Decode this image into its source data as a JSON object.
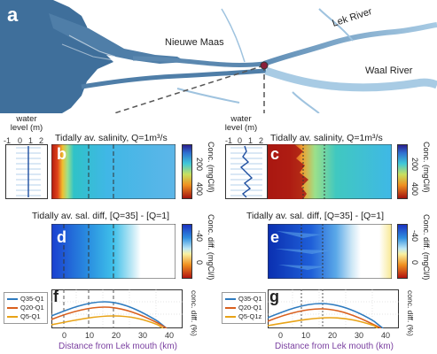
{
  "panel_a": {
    "letter": "a",
    "labels": {
      "nieuwe_maas": "Nieuwe Maas",
      "lek_river": "Lek River",
      "waal_river": "Waal River"
    }
  },
  "panel_b": {
    "letter": "b",
    "title": "Tidally av. salinity, Q=1m³/s",
    "water_level_title": "water\nlevel (m)",
    "water_level_ticks": [
      "-1",
      "0",
      "1",
      "2"
    ],
    "colorbar_label": "Conc. (mgCl/l)",
    "colorbar_ticks": [
      "200",
      "400"
    ]
  },
  "panel_c": {
    "letter": "c",
    "title": "Tidally av. salinity, Q=1m³/s",
    "water_level_title": "water\nlevel (m)",
    "water_level_ticks": [
      "-1",
      "0",
      "1",
      "2"
    ],
    "colorbar_label": "Conc. (mgCl/l)",
    "colorbar_ticks": [
      "200",
      "400"
    ]
  },
  "panel_d": {
    "letter": "d",
    "title": "Tidally av. sal. diff, [Q=35] - [Q=1]",
    "colorbar_label": "Conc. diff. (mgCl/l)",
    "colorbar_ticks": [
      "-40",
      "0"
    ]
  },
  "panel_e": {
    "letter": "e",
    "title": "Tidally av. sal. diff, [Q=35] - [Q=1]",
    "colorbar_label": "Conc. diff. (mgCl/l)",
    "colorbar_ticks": [
      "-40",
      "0"
    ]
  },
  "panel_f": {
    "letter": "f",
    "ylabel": "conc. diff. (%)",
    "xlabel": "Distance from Lek mouth (km)",
    "xticks": [
      "0",
      "10",
      "20",
      "30",
      "40"
    ],
    "legend": [
      {
        "name": "Q35-Q1",
        "color": "#2e7bbf"
      },
      {
        "name": "Q20-Q1",
        "color": "#d95f1e"
      },
      {
        "name": "Q5-Q1",
        "color": "#e8a317"
      }
    ]
  },
  "panel_g": {
    "letter": "g",
    "ylabel": "conc. diff. (%)",
    "xlabel": "Distance from Lek mouth (km)",
    "xticks": [
      "0",
      "10",
      "20",
      "30",
      "40"
    ],
    "legend": [
      {
        "name": "Q35-Q1",
        "color": "#2e7bbf"
      },
      {
        "name": "Q20-Q1",
        "color": "#d95f1e"
      },
      {
        "name": "Q5-Q1z",
        "color": "#e8a317"
      }
    ]
  },
  "colors": {
    "map_water": "#3f6f9b",
    "river_light": "#9fc3df",
    "xlabel_purple": "#7a3fa0"
  }
}
